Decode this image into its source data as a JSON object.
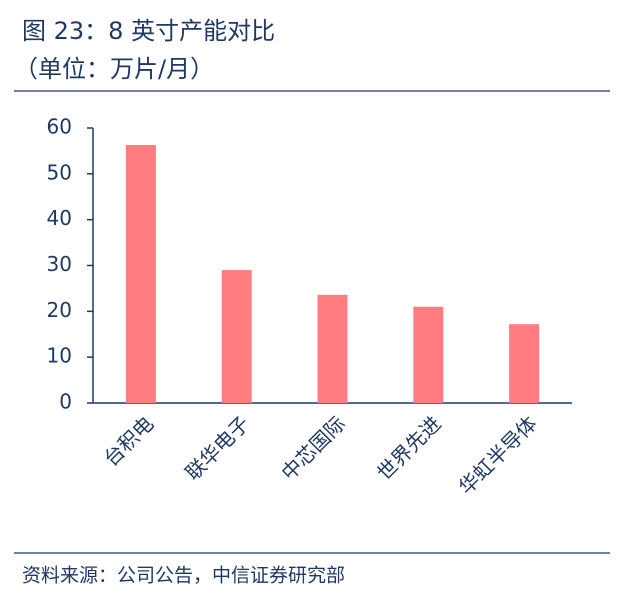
{
  "chart_data": {
    "type": "bar",
    "title": "图 23：8 英寸产能对比",
    "subtitle": "（单位：万片/月）",
    "source": "资料来源：公司公告，中信证券研究部",
    "categories": [
      "台积电",
      "联华电子",
      "中芯国际",
      "世界先进",
      "华虹半导体"
    ],
    "values": [
      56.3,
      29,
      23.6,
      21,
      17.2
    ],
    "color": "#ff7c80",
    "ylim": [
      0,
      60
    ],
    "yticks": [
      0,
      10,
      20,
      30,
      40,
      50,
      60
    ],
    "grid": false
  }
}
